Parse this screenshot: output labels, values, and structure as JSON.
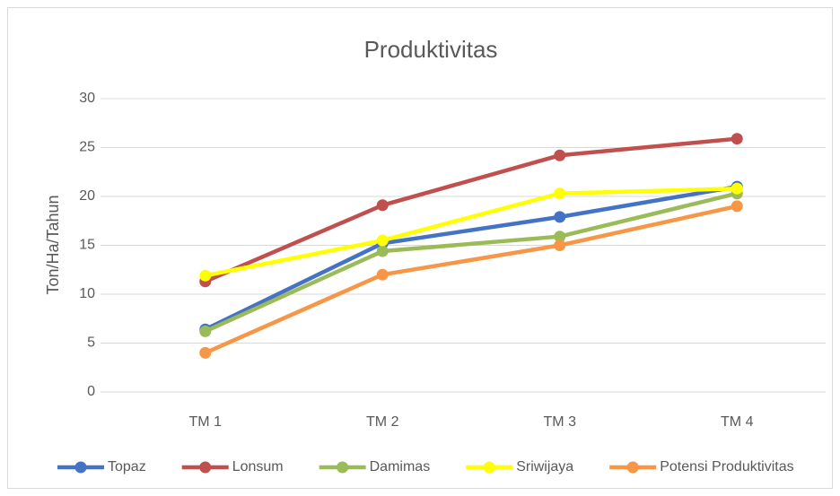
{
  "chart_data": {
    "type": "line",
    "title": "Produktivitas",
    "y_label": "Ton/Ha/Tahun",
    "categories": [
      "TM 1",
      "TM 2",
      "TM 3",
      "TM 4"
    ],
    "series": [
      {
        "name": "Topaz",
        "color": "#4472c4",
        "values": [
          6.4,
          15.2,
          17.9,
          21.0
        ]
      },
      {
        "name": "Lonsum",
        "color": "#c0504d",
        "values": [
          11.3,
          19.1,
          24.2,
          25.9
        ]
      },
      {
        "name": "Damimas",
        "color": "#9bbb59",
        "values": [
          6.2,
          14.4,
          15.9,
          20.3
        ]
      },
      {
        "name": "Sriwijaya",
        "color": "#ffff00",
        "values": [
          11.9,
          15.5,
          20.3,
          20.8
        ]
      },
      {
        "name": "Potensi Produktivitas",
        "color": "#f79646",
        "values": [
          4,
          12,
          15,
          19
        ]
      }
    ],
    "ylim": [
      0,
      30
    ],
    "yticks": [
      0,
      5,
      10,
      15,
      20,
      25,
      30
    ],
    "grid": true,
    "legend": "bottom"
  }
}
